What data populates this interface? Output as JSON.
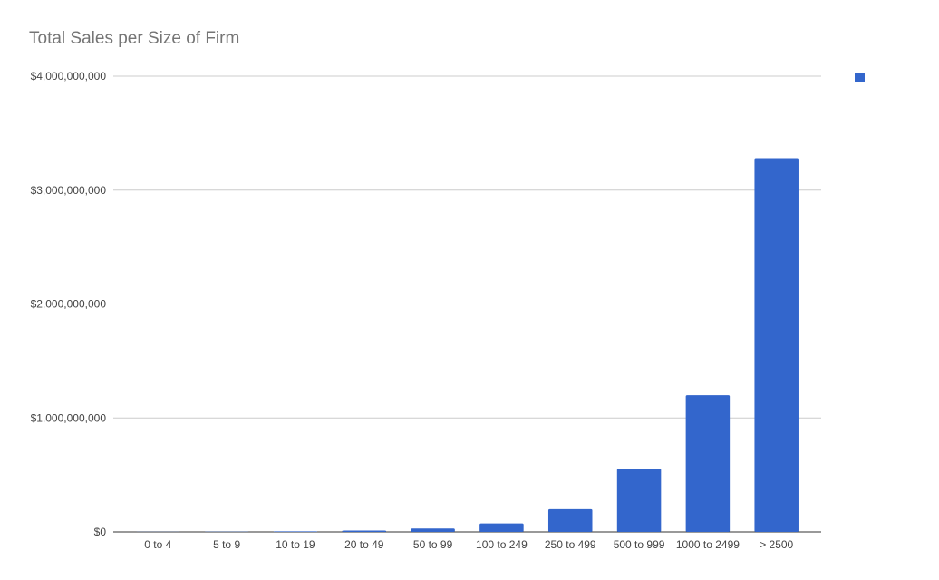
{
  "chart_data": {
    "type": "bar",
    "title": "Total Sales per Size of Firm",
    "categories": [
      "0 to 4",
      "5 to 9",
      "10 to 19",
      "20 to 49",
      "50 to 99",
      "100 to 249",
      "250 to 499",
      "500 to 999",
      "1000 to 2499",
      "> 2500"
    ],
    "series": [
      {
        "values": [
          1000000,
          2000000,
          5000000,
          12000000,
          30000000,
          75000000,
          200000000,
          555000000,
          1200000000,
          3280000000
        ]
      }
    ],
    "ylim": [
      0,
      4000000000
    ],
    "yticks": [
      0,
      1000000000,
      2000000000,
      3000000000,
      4000000000
    ],
    "ytick_labels": [
      "$0",
      "$1,000,000,000",
      "$2,000,000,000",
      "$3,000,000,000",
      "$4,000,000,000"
    ],
    "xlabel": "",
    "ylabel": "",
    "grid": true,
    "legend_position": "top-right",
    "colors": {
      "bar": "#3366cc",
      "grid": "#cccccc",
      "axis": "#333333",
      "tick_text": "#444444",
      "title": "#757575"
    }
  }
}
